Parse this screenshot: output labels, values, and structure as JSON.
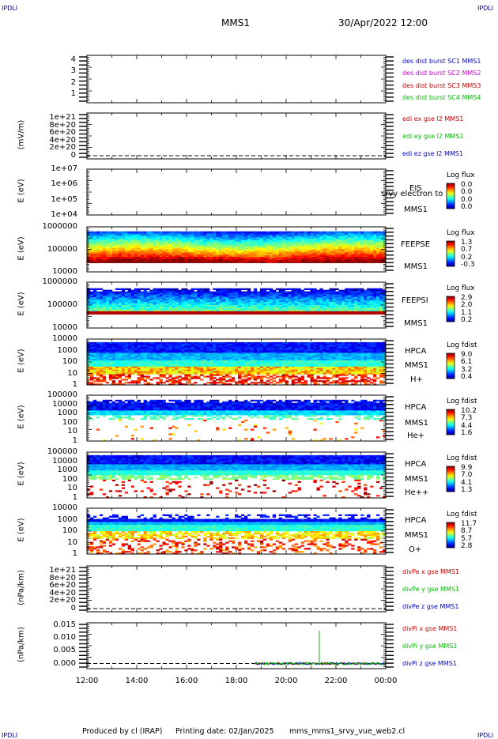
{
  "header": {
    "left_logo": "IPDLI",
    "right_logo": "IPDLI",
    "spacecraft": "MMS1",
    "datetime": "30/Apr/2022 12:00"
  },
  "footer": {
    "produced_by": "Produced by cl (IRAP)",
    "printing_date": "Printing date: 02/Jan/2025",
    "file": "mms_mms1_srvy_vue_web2.cl",
    "bottom_left_logo": "IPDLI",
    "bottom_right_logo": "IPDLI"
  },
  "colors": {
    "blue": "#0000cc",
    "magenta": "#cc00cc",
    "red": "#cc0000",
    "green": "#00bb00",
    "frame": "#000000"
  },
  "chart_data": {
    "type": "multi-panel",
    "x_axis": {
      "ticks": [
        "12:00",
        "14:00",
        "16:00",
        "18:00",
        "20:00",
        "22:00",
        "00:00"
      ],
      "range": [
        "12:00",
        "00:00"
      ]
    },
    "panels": [
      {
        "id": "p1",
        "type": "line",
        "ylabel": "",
        "yticks": [
          "4",
          "3",
          "2",
          "1"
        ],
        "legend": [
          {
            "text": "des dist burst SC1 MMS1",
            "color": "blue"
          },
          {
            "text": "des dist burst SC2 MMS2",
            "color": "magenta"
          },
          {
            "text": "des dist burst SC3 MMS3",
            "color": "red"
          },
          {
            "text": "des dist burst SC4 MMS4",
            "color": "green"
          }
        ]
      },
      {
        "id": "p2",
        "type": "line",
        "ylabel": "(mV/m)",
        "yticks": [
          "1e+21",
          "8e+20",
          "6e+20",
          "4e+20",
          "2e+20",
          "0"
        ],
        "dashed_zero": true,
        "legend": [
          {
            "text": "edi ex gse l2 MMS1",
            "color": "red"
          },
          {
            "text": "edi ey gse l2 MMS1",
            "color": "green"
          },
          {
            "text": "edi ez gse l2 MMS1",
            "color": "blue"
          }
        ]
      },
      {
        "id": "p3",
        "type": "heatmap",
        "ylabel": "E (eV)",
        "yticks": [
          "1e+07",
          "1e+06",
          "1e+05",
          "1e+04"
        ],
        "right_labels": [
          "EIS",
          "srvy electron to",
          "MMS1"
        ],
        "colorbar": {
          "title": "Log flux",
          "values": [
            "0.0",
            "0.0",
            "0.0",
            "0.0"
          ]
        },
        "empty": true
      },
      {
        "id": "p4",
        "type": "heatmap",
        "ylabel": "E (eV)",
        "yticks": [
          "1000000",
          "100000",
          "10000"
        ],
        "right_labels": [
          "FEEPSE",
          "MMS1"
        ],
        "colorbar": {
          "title": "Log flux",
          "values": [
            "1.3",
            "0.7",
            "0.2",
            "-0.3"
          ]
        }
      },
      {
        "id": "p5",
        "type": "heatmap",
        "ylabel": "E (eV)",
        "yticks": [
          "1000000",
          "100000",
          "10000"
        ],
        "right_labels": [
          "FEEPSI",
          "MMS1"
        ],
        "colorbar": {
          "title": "Log flux",
          "values": [
            "2.9",
            "2.0",
            "1.1",
            "0.2"
          ]
        }
      },
      {
        "id": "p6",
        "type": "heatmap",
        "ylabel": "E (eV)",
        "yticks": [
          "10000",
          "1000",
          "100",
          "10",
          "1"
        ],
        "right_labels": [
          "HPCA",
          "MMS1",
          "H+"
        ],
        "colorbar": {
          "title": "Log fdist",
          "values": [
            "9.0",
            "6.1",
            "3.2",
            "0.4"
          ]
        }
      },
      {
        "id": "p7",
        "type": "heatmap",
        "ylabel": "E (eV)",
        "yticks": [
          "100000",
          "10000",
          "1000",
          "100",
          "10",
          "1"
        ],
        "right_labels": [
          "HPCA",
          "MMS1",
          "He+"
        ],
        "colorbar": {
          "title": "Log fdist",
          "values": [
            "10.2",
            "7.3",
            "4.4",
            "1.6"
          ]
        }
      },
      {
        "id": "p8",
        "type": "heatmap",
        "ylabel": "E (eV)",
        "yticks": [
          "100000",
          "10000",
          "1000",
          "100",
          "10",
          "1"
        ],
        "right_labels": [
          "HPCA",
          "MMS1",
          "He++"
        ],
        "colorbar": {
          "title": "Log fdist",
          "values": [
            "9.9",
            "7.0",
            "4.1",
            "1.3"
          ]
        }
      },
      {
        "id": "p9",
        "type": "heatmap",
        "ylabel": "E (eV)",
        "yticks": [
          "10000",
          "1000",
          "100",
          "10",
          "1"
        ],
        "right_labels": [
          "HPCA",
          "MMS1",
          "O+"
        ],
        "colorbar": {
          "title": "Log fdist",
          "values": [
            "11.7",
            "8.7",
            "5.7",
            "2.8"
          ]
        }
      },
      {
        "id": "p10",
        "type": "line",
        "ylabel": "(nPa/km)",
        "yticks": [
          "1e+21",
          "8e+20",
          "6e+20",
          "4e+20",
          "2e+20",
          "0"
        ],
        "dashed_zero": true,
        "legend": [
          {
            "text": "divPe x gse MMS1",
            "color": "red"
          },
          {
            "text": "divPe y gse MMS1",
            "color": "green"
          },
          {
            "text": "divPe z gse MMS1",
            "color": "blue"
          }
        ]
      },
      {
        "id": "p11",
        "type": "line",
        "ylabel": "(nPa/km)",
        "yticks": [
          "0.015",
          "0.010",
          "0.005",
          "0.000"
        ],
        "ylim": [
          -0.002,
          0.016
        ],
        "dashed_zero": true,
        "data_start": "18:45",
        "spike": {
          "x": "21:20",
          "y": 0.013,
          "series": "y"
        },
        "legend": [
          {
            "text": "divPi x gse MMS1",
            "color": "red"
          },
          {
            "text": "divPi y gse MMS1",
            "color": "green"
          },
          {
            "text": "divPi z gse MMS1",
            "color": "blue"
          }
        ]
      }
    ]
  }
}
